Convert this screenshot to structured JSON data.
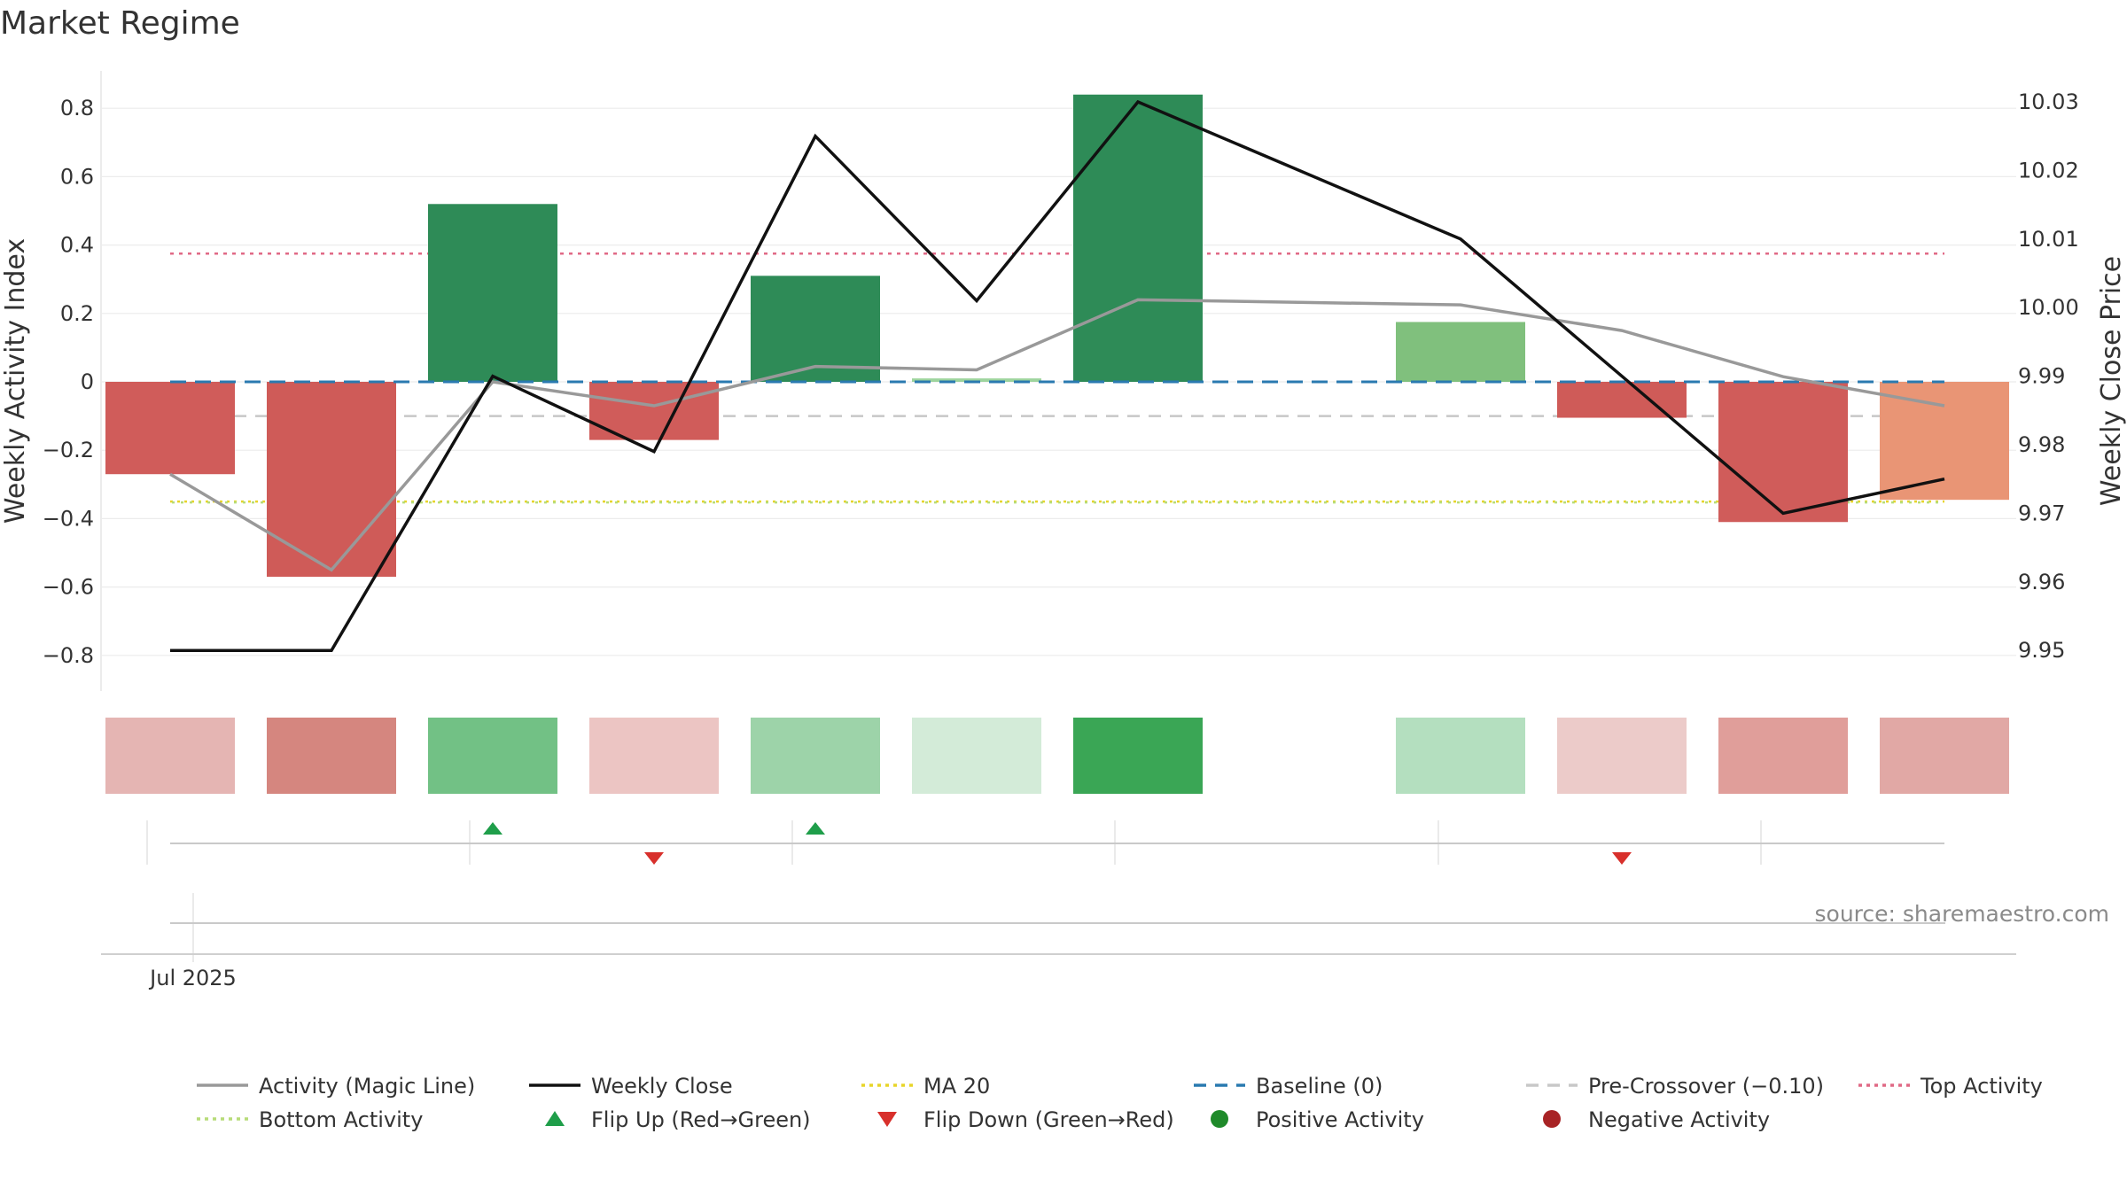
{
  "chart_data": {
    "type": "bar",
    "title": "Market Regime",
    "source": "source: sharemaestro.com",
    "xlabel": "",
    "x_tick_labels": [
      "Jul 2025"
    ],
    "left_axis": {
      "label": "Weekly Activity Index",
      "ylim": [
        -0.92,
        0.92
      ],
      "ticks": [
        0.8,
        0.6,
        0.4,
        0.2,
        0,
        -0.2,
        -0.4,
        -0.6,
        -0.8
      ],
      "tick_labels": [
        "0.8",
        "0.6",
        "0.4",
        "0.2",
        "0",
        "−0.2",
        "−0.4",
        "−0.6",
        "−0.8"
      ]
    },
    "right_axis": {
      "label": "Weekly Close Price",
      "ticks": [
        10.03,
        10.02,
        10.01,
        10.0,
        9.99,
        9.98,
        9.97,
        9.96,
        9.95
      ],
      "tick_labels": [
        "10.03",
        "10.02",
        "10.01",
        "10.00",
        "9.99",
        "9.98",
        "9.97",
        "9.96",
        "9.95"
      ]
    },
    "weeks": 12,
    "activity_bars": [
      -0.27,
      -0.57,
      0.52,
      -0.17,
      0.31,
      0.01,
      0.84,
      null,
      0.175,
      -0.105,
      -0.41,
      -0.345
    ],
    "bar_colors": [
      "#d05c5a",
      "#cf5b58",
      "#2e8b57",
      "#d05c5a",
      "#2e8b57",
      "#9dd49d",
      "#2e8b57",
      null,
      "#80c07d",
      "#cf5b58",
      "#d05c5a",
      "#e99575"
    ],
    "magic_line": [
      -0.27,
      -0.55,
      0.0,
      -0.07,
      0.045,
      0.035,
      0.24,
      null,
      0.225,
      0.15,
      0.015,
      -0.07
    ],
    "weekly_close": [
      9.95,
      9.95,
      9.99,
      9.979,
      10.025,
      10.001,
      10.03,
      null,
      10.01,
      9.99,
      9.97,
      9.975
    ],
    "baseline": 0,
    "pre_crossover": -0.1,
    "top_activity": 0.375,
    "bottom_activity": -0.35,
    "ma20": -0.35,
    "regime_strip_colors": [
      "#e5b5b3",
      "#d5867f",
      "#72c185",
      "#ecc5c3",
      "#9dd3a9",
      "#d3ebd8",
      "#3aa655",
      null,
      "#b4dfbf",
      "#eccbc9",
      "#e09e9a",
      "#e1a8a5"
    ],
    "flips": [
      {
        "week": 3,
        "direction": "up"
      },
      {
        "week": 4,
        "direction": "down"
      },
      {
        "week": 5,
        "direction": "up"
      },
      {
        "week": 10,
        "direction": "down"
      }
    ],
    "legend": [
      {
        "label": "Activity (Magic Line)",
        "kind": "line",
        "color": "#999999",
        "dash": "none"
      },
      {
        "label": "Weekly Close",
        "kind": "line",
        "color": "#111111",
        "dash": "none"
      },
      {
        "label": "MA 20",
        "kind": "line",
        "color": "#e8d52a",
        "dash": "dot"
      },
      {
        "label": "Baseline (0)",
        "kind": "line",
        "color": "#2a7ab0",
        "dash": "dash"
      },
      {
        "label": "Pre-Crossover (−0.10)",
        "kind": "line",
        "color": "#c8c8c8",
        "dash": "dash"
      },
      {
        "label": "Top Activity",
        "kind": "line",
        "color": "#e06a86",
        "dash": "dot"
      },
      {
        "label": "Bottom Activity",
        "kind": "line",
        "color": "#b7dc78",
        "dash": "dot"
      },
      {
        "label": "Flip Up (Red→Green)",
        "kind": "triangle-up",
        "color": "#1f9e4a"
      },
      {
        "label": "Flip Down (Green→Red)",
        "kind": "triangle-down",
        "color": "#d8302c"
      },
      {
        "label": "Positive Activity",
        "kind": "circle",
        "color": "#1f8a2a"
      },
      {
        "label": "Negative Activity",
        "kind": "circle",
        "color": "#a82325"
      }
    ]
  }
}
